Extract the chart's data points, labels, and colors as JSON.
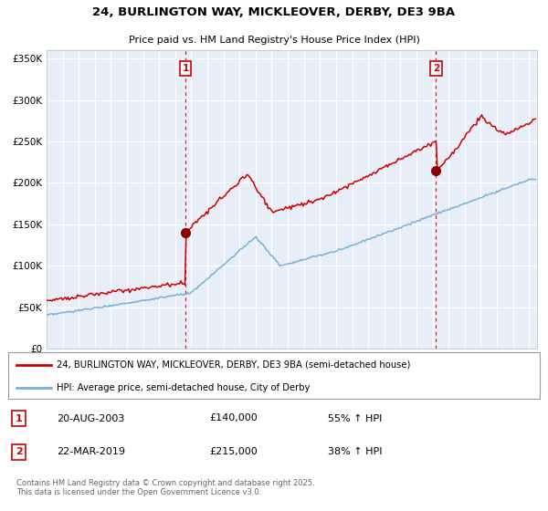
{
  "title_line1": "24, BURLINGTON WAY, MICKLEOVER, DERBY, DE3 9BA",
  "title_line2": "Price paid vs. HM Land Registry's House Price Index (HPI)",
  "y_ticks": [
    0,
    50000,
    100000,
    150000,
    200000,
    250000,
    300000,
    350000
  ],
  "y_tick_labels": [
    "£0",
    "£50K",
    "£100K",
    "£150K",
    "£200K",
    "£250K",
    "£300K",
    "£350K"
  ],
  "sale1_date": 2003.64,
  "sale1_price": 140000,
  "sale2_date": 2019.22,
  "sale2_price": 215000,
  "red_line_color": "#cc0000",
  "blue_line_color": "#7ab0d4",
  "sale_marker_color": "#880000",
  "vline_color": "#cc0000",
  "background_color": "#e8eef8",
  "grid_color": "#ffffff",
  "legend_entry1": "24, BURLINGTON WAY, MICKLEOVER, DERBY, DE3 9BA (semi-detached house)",
  "legend_entry2": "HPI: Average price, semi-detached house, City of Derby",
  "annotation1_date": "20-AUG-2003",
  "annotation1_price": "£140,000",
  "annotation1_pct": "55% ↑ HPI",
  "annotation2_date": "22-MAR-2019",
  "annotation2_price": "£215,000",
  "annotation2_pct": "38% ↑ HPI",
  "footer": "Contains HM Land Registry data © Crown copyright and database right 2025.\nThis data is licensed under the Open Government Licence v3.0."
}
